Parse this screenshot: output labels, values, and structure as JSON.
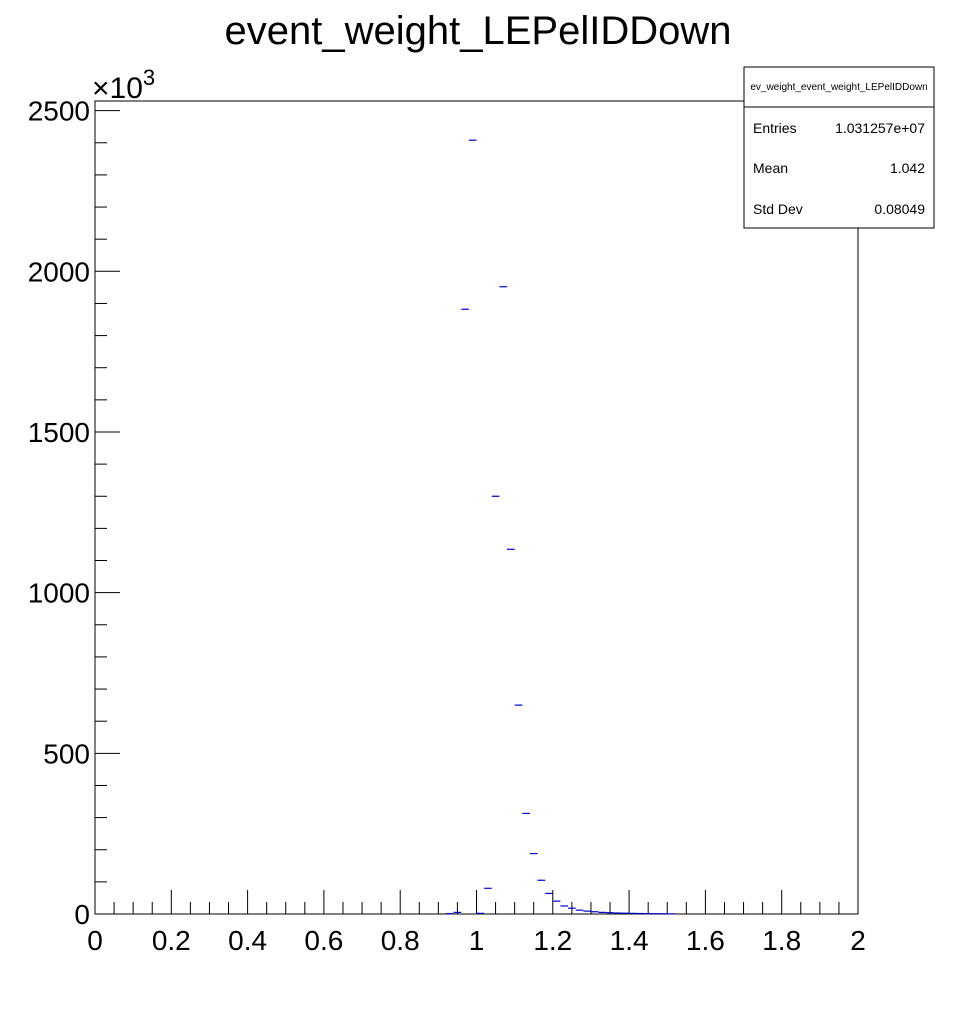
{
  "chart_data": {
    "type": "histogram",
    "title": "event_weight_LEPelIDDown",
    "xlabel": "",
    "ylabel": "",
    "xlim": [
      0,
      2
    ],
    "ylim": [
      0,
      2530
    ],
    "y_multiplier_label": "×10",
    "y_multiplier_exponent": "3",
    "x_tick_labels": [
      "0",
      "0.2",
      "0.4",
      "0.6",
      "0.8",
      "1",
      "1.2",
      "1.4",
      "1.6",
      "1.8",
      "2"
    ],
    "x_tick_values": [
      0,
      0.2,
      0.4,
      0.6,
      0.8,
      1.0,
      1.2,
      1.4,
      1.6,
      1.8,
      2.0
    ],
    "y_tick_labels": [
      "0",
      "500",
      "1000",
      "1500",
      "2000",
      "2500"
    ],
    "y_tick_values": [
      0,
      500,
      1000,
      1500,
      2000,
      2500
    ],
    "series": [
      {
        "color": "#0000cc",
        "bin_width": 0.02,
        "x": [
          0.93,
          0.95,
          0.97,
          0.99,
          1.01,
          1.03,
          1.05,
          1.07,
          1.09,
          1.11,
          1.13,
          1.15,
          1.17,
          1.19,
          1.21,
          1.23,
          1.25,
          1.27,
          1.29,
          1.31,
          1.33,
          1.35,
          1.37,
          1.39,
          1.41,
          1.43,
          1.45,
          1.47,
          1.49,
          1.51
        ],
        "values": [
          1,
          5,
          1882,
          2408,
          2,
          80,
          1300,
          1952,
          1135,
          650,
          313,
          188,
          105,
          64,
          40,
          25,
          18,
          12,
          9,
          7,
          5,
          4,
          3,
          2.5,
          2,
          1.5,
          1,
          1,
          0.8,
          0.5
        ]
      }
    ],
    "stats_box": {
      "name": "ev_weight_event_weight_LEPelIDDown",
      "rows": [
        {
          "label": "Entries",
          "value": "1.031257e+07"
        },
        {
          "label": "Mean",
          "value": "1.042"
        },
        {
          "label": "Std Dev",
          "value": "0.08049"
        }
      ]
    }
  }
}
